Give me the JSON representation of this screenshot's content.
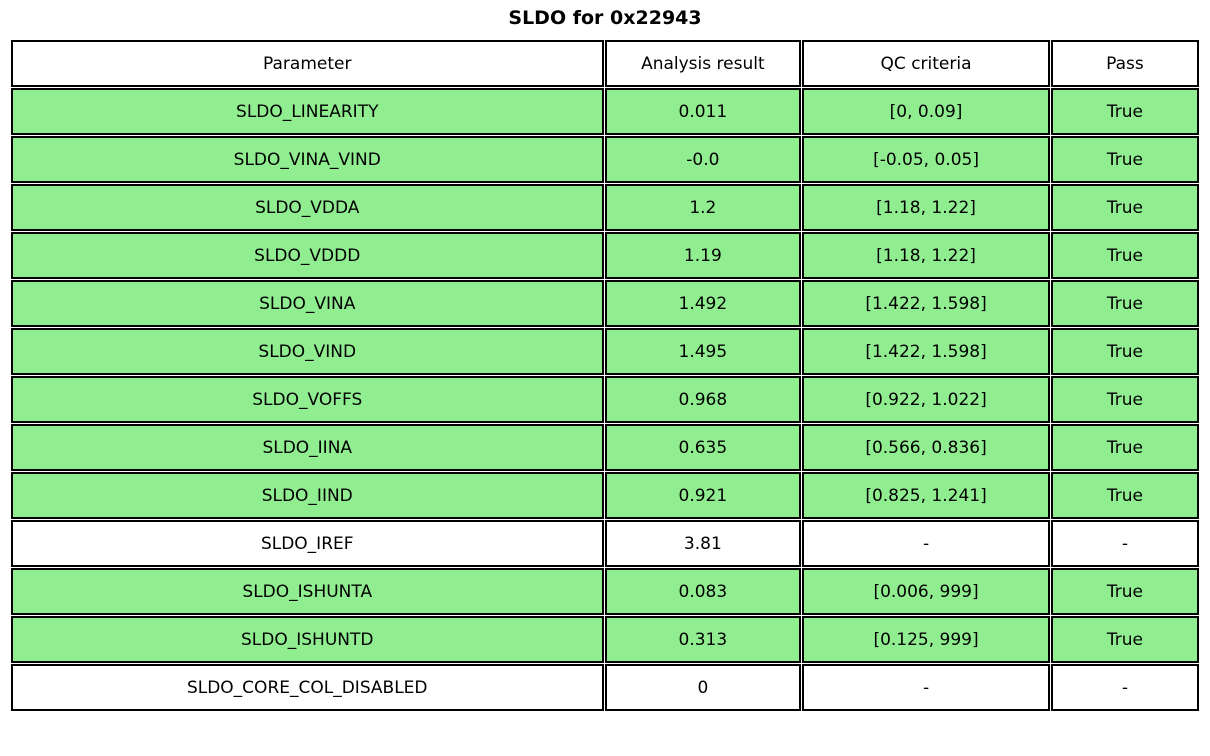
{
  "title": "SLDO for 0x22943",
  "colors": {
    "pass_row": "#90ee90",
    "neutral_row": "#ffffff",
    "border": "#000000",
    "text": "#000000"
  },
  "table": {
    "headers": {
      "parameter": "Parameter",
      "result": "Analysis result",
      "criteria": "QC criteria",
      "pass": "Pass"
    },
    "rows": [
      {
        "parameter": "SLDO_LINEARITY",
        "result": "0.011",
        "criteria": "[0, 0.09]",
        "pass": "True",
        "highlight": true
      },
      {
        "parameter": "SLDO_VINA_VIND",
        "result": "-0.0",
        "criteria": "[-0.05, 0.05]",
        "pass": "True",
        "highlight": true
      },
      {
        "parameter": "SLDO_VDDA",
        "result": "1.2",
        "criteria": "[1.18, 1.22]",
        "pass": "True",
        "highlight": true
      },
      {
        "parameter": "SLDO_VDDD",
        "result": "1.19",
        "criteria": "[1.18, 1.22]",
        "pass": "True",
        "highlight": true
      },
      {
        "parameter": "SLDO_VINA",
        "result": "1.492",
        "criteria": "[1.422, 1.598]",
        "pass": "True",
        "highlight": true
      },
      {
        "parameter": "SLDO_VIND",
        "result": "1.495",
        "criteria": "[1.422, 1.598]",
        "pass": "True",
        "highlight": true
      },
      {
        "parameter": "SLDO_VOFFS",
        "result": "0.968",
        "criteria": "[0.922, 1.022]",
        "pass": "True",
        "highlight": true
      },
      {
        "parameter": "SLDO_IINA",
        "result": "0.635",
        "criteria": "[0.566, 0.836]",
        "pass": "True",
        "highlight": true
      },
      {
        "parameter": "SLDO_IIND",
        "result": "0.921",
        "criteria": "[0.825, 1.241]",
        "pass": "True",
        "highlight": true
      },
      {
        "parameter": "SLDO_IREF",
        "result": "3.81",
        "criteria": "-",
        "pass": "-",
        "highlight": false
      },
      {
        "parameter": "SLDO_ISHUNTA",
        "result": "0.083",
        "criteria": "[0.006, 999]",
        "pass": "True",
        "highlight": true
      },
      {
        "parameter": "SLDO_ISHUNTD",
        "result": "0.313",
        "criteria": "[0.125, 999]",
        "pass": "True",
        "highlight": true
      },
      {
        "parameter": "SLDO_CORE_COL_DISABLED",
        "result": "0",
        "criteria": "-",
        "pass": "-",
        "highlight": false
      }
    ]
  },
  "chart_data": {
    "type": "table",
    "title": "SLDO for 0x22943",
    "columns": [
      "Parameter",
      "Analysis result",
      "QC criteria",
      "Pass"
    ],
    "rows": [
      [
        "SLDO_LINEARITY",
        "0.011",
        "[0, 0.09]",
        "True"
      ],
      [
        "SLDO_VINA_VIND",
        "-0.0",
        "[-0.05, 0.05]",
        "True"
      ],
      [
        "SLDO_VDDA",
        "1.2",
        "[1.18, 1.22]",
        "True"
      ],
      [
        "SLDO_VDDD",
        "1.19",
        "[1.18, 1.22]",
        "True"
      ],
      [
        "SLDO_VINA",
        "1.492",
        "[1.422, 1.598]",
        "True"
      ],
      [
        "SLDO_VIND",
        "1.495",
        "[1.422, 1.598]",
        "True"
      ],
      [
        "SLDO_VOFFS",
        "0.968",
        "[0.922, 1.022]",
        "True"
      ],
      [
        "SLDO_IINA",
        "0.635",
        "[0.566, 0.836]",
        "True"
      ],
      [
        "SLDO_IIND",
        "0.921",
        "[0.825, 1.241]",
        "True"
      ],
      [
        "SLDO_IREF",
        "3.81",
        "-",
        "-"
      ],
      [
        "SLDO_ISHUNTA",
        "0.083",
        "[0.006, 999]",
        "True"
      ],
      [
        "SLDO_ISHUNTD",
        "0.313",
        "[0.125, 999]",
        "True"
      ],
      [
        "SLDO_CORE_COL_DISABLED",
        "0",
        "-",
        "-"
      ]
    ],
    "row_highlighted_green": [
      true,
      true,
      true,
      true,
      true,
      true,
      true,
      true,
      true,
      false,
      true,
      true,
      false
    ],
    "layout": {
      "header_background": "#ffffff",
      "pass_row_background": "#90ee90",
      "grid": "on",
      "text_align": "center"
    }
  }
}
